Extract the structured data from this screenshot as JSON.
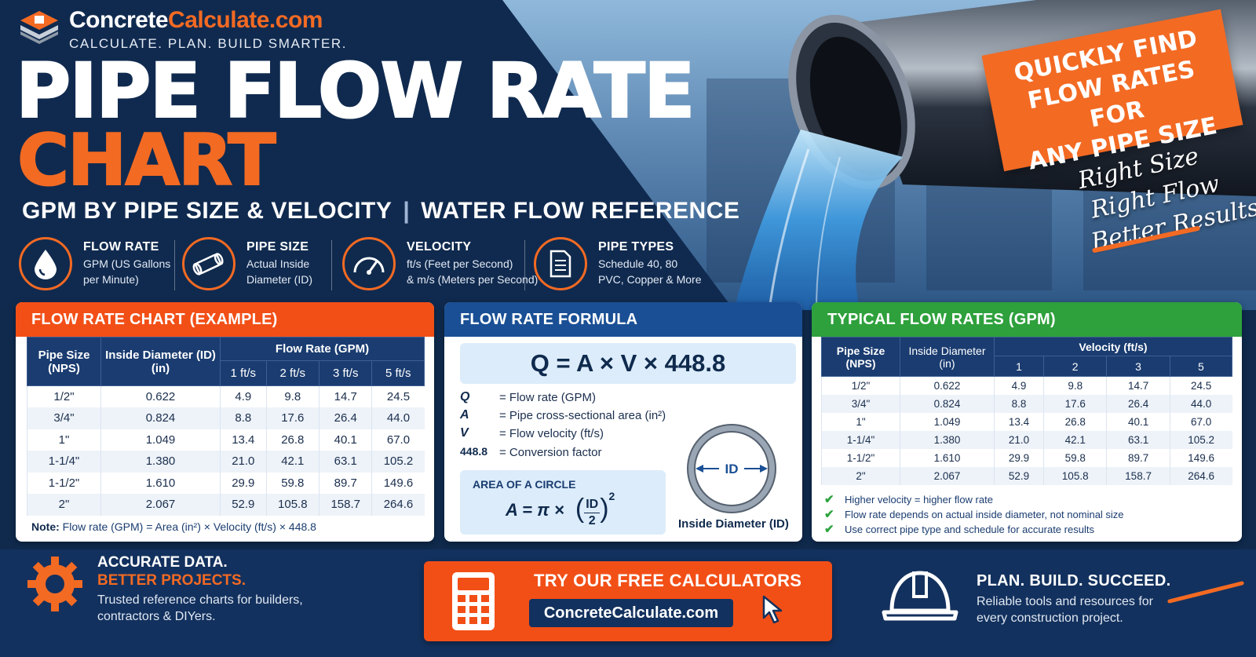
{
  "brand": {
    "name_part1": "Concrete",
    "name_part2": "Calculate.com",
    "tagline": "CALCULATE. PLAN. BUILD SMARTER."
  },
  "hero": {
    "title_line1": "PIPE FLOW RATE",
    "title_line2": "CHART",
    "subtitle_left": "GPM BY PIPE SIZE & VELOCITY",
    "subtitle_sep": "|",
    "subtitle_right": "WATER FLOW REFERENCE",
    "promo_lines": [
      "QUICKLY FIND",
      "FLOW RATES FOR",
      "ANY PIPE SIZE"
    ],
    "script_lines": [
      "Right Size",
      "Right Flow",
      "Better Results"
    ]
  },
  "features": [
    {
      "icon": "water-drop-icon",
      "title": "FLOW RATE",
      "desc1": "GPM (US Gallons",
      "desc2": "per Minute)"
    },
    {
      "icon": "pipe-icon",
      "title": "PIPE SIZE",
      "desc1": "Actual Inside",
      "desc2": "Diameter (ID)"
    },
    {
      "icon": "gauge-icon",
      "title": "VELOCITY",
      "desc1": "ft/s (Feet per Second)",
      "desc2": "& m/s (Meters per Second)"
    },
    {
      "icon": "document-icon",
      "title": "PIPE TYPES",
      "desc1": "Schedule 40, 80",
      "desc2": "PVC, Copper & More"
    }
  ],
  "colors": {
    "orange": "#f36a23",
    "navy": "#0f2a4d",
    "green": "#2da33f",
    "blue_head": "#1a4f95"
  },
  "table": {
    "rows": [
      [
        "1/2\"",
        "0.622",
        "4.9",
        "9.8",
        "14.7",
        "24.5"
      ],
      [
        "3/4\"",
        "0.824",
        "8.8",
        "17.6",
        "26.4",
        "44.0"
      ],
      [
        "1\"",
        "1.049",
        "13.4",
        "26.8",
        "40.1",
        "67.0"
      ],
      [
        "1-1/4\"",
        "1.380",
        "21.0",
        "42.1",
        "63.1",
        "105.2"
      ],
      [
        "1-1/2\"",
        "1.610",
        "29.9",
        "59.8",
        "89.7",
        "149.6"
      ],
      [
        "2\"",
        "2.067",
        "52.9",
        "105.8",
        "158.7",
        "264.6"
      ]
    ]
  },
  "panel1": {
    "title": "FLOW RATE CHART (EXAMPLE)",
    "h_size": "Pipe Size",
    "h_size2": "(NPS)",
    "h_id": "Inside Diameter (ID)",
    "h_id2": "(in)",
    "h_group": "Flow Rate (GPM)",
    "h_vel": [
      "1 ft/s",
      "2 ft/s",
      "3 ft/s",
      "5 ft/s"
    ],
    "note_label": "Note:",
    "note_text": "Flow rate (GPM) = Area (in²) × Velocity (ft/s) × 448.8"
  },
  "panel2": {
    "title": "FLOW RATE FORMULA",
    "formula": "Q = A × V × 448.8",
    "defs": [
      {
        "sym": "Q",
        "txt": "= Flow rate (GPM)"
      },
      {
        "sym": "A",
        "txt": "= Pipe cross-sectional area (in²)"
      },
      {
        "sym": "V",
        "txt": "= Flow velocity (ft/s)"
      },
      {
        "sym": "448.8",
        "txt": "= Conversion factor"
      }
    ],
    "area_title": "AREA OF A CIRCLE",
    "area_lhs": "A = π ×",
    "area_num": "ID",
    "area_den": "2",
    "area_exp": "2",
    "circle_label": "ID",
    "id_caption": "Inside Diameter (ID)"
  },
  "panel3": {
    "title": "TYPICAL FLOW RATES (GPM)",
    "h_size": "Pipe Size",
    "h_size2": "(NPS)",
    "h_id": "Inside Diameter",
    "h_id2": "(in)",
    "h_group": "Velocity (ft/s)",
    "h_vel": [
      "1",
      "2",
      "3",
      "5"
    ],
    "checks": [
      "Higher velocity = higher flow rate",
      "Flow rate depends on actual inside diameter, not nominal size",
      "Use correct pipe type and schedule for accurate results"
    ]
  },
  "footer": {
    "left_l1": "ACCURATE DATA.",
    "left_l2": "BETTER PROJECTS.",
    "left_l3": "Trusted reference charts for builders, contractors & DIYers.",
    "cta_title": "TRY OUR FREE CALCULATORS",
    "cta_url": "ConcreteCalculate.com",
    "right_l1": "PLAN. BUILD. SUCCEED.",
    "right_l2": "Reliable tools and resources for every construction project."
  }
}
